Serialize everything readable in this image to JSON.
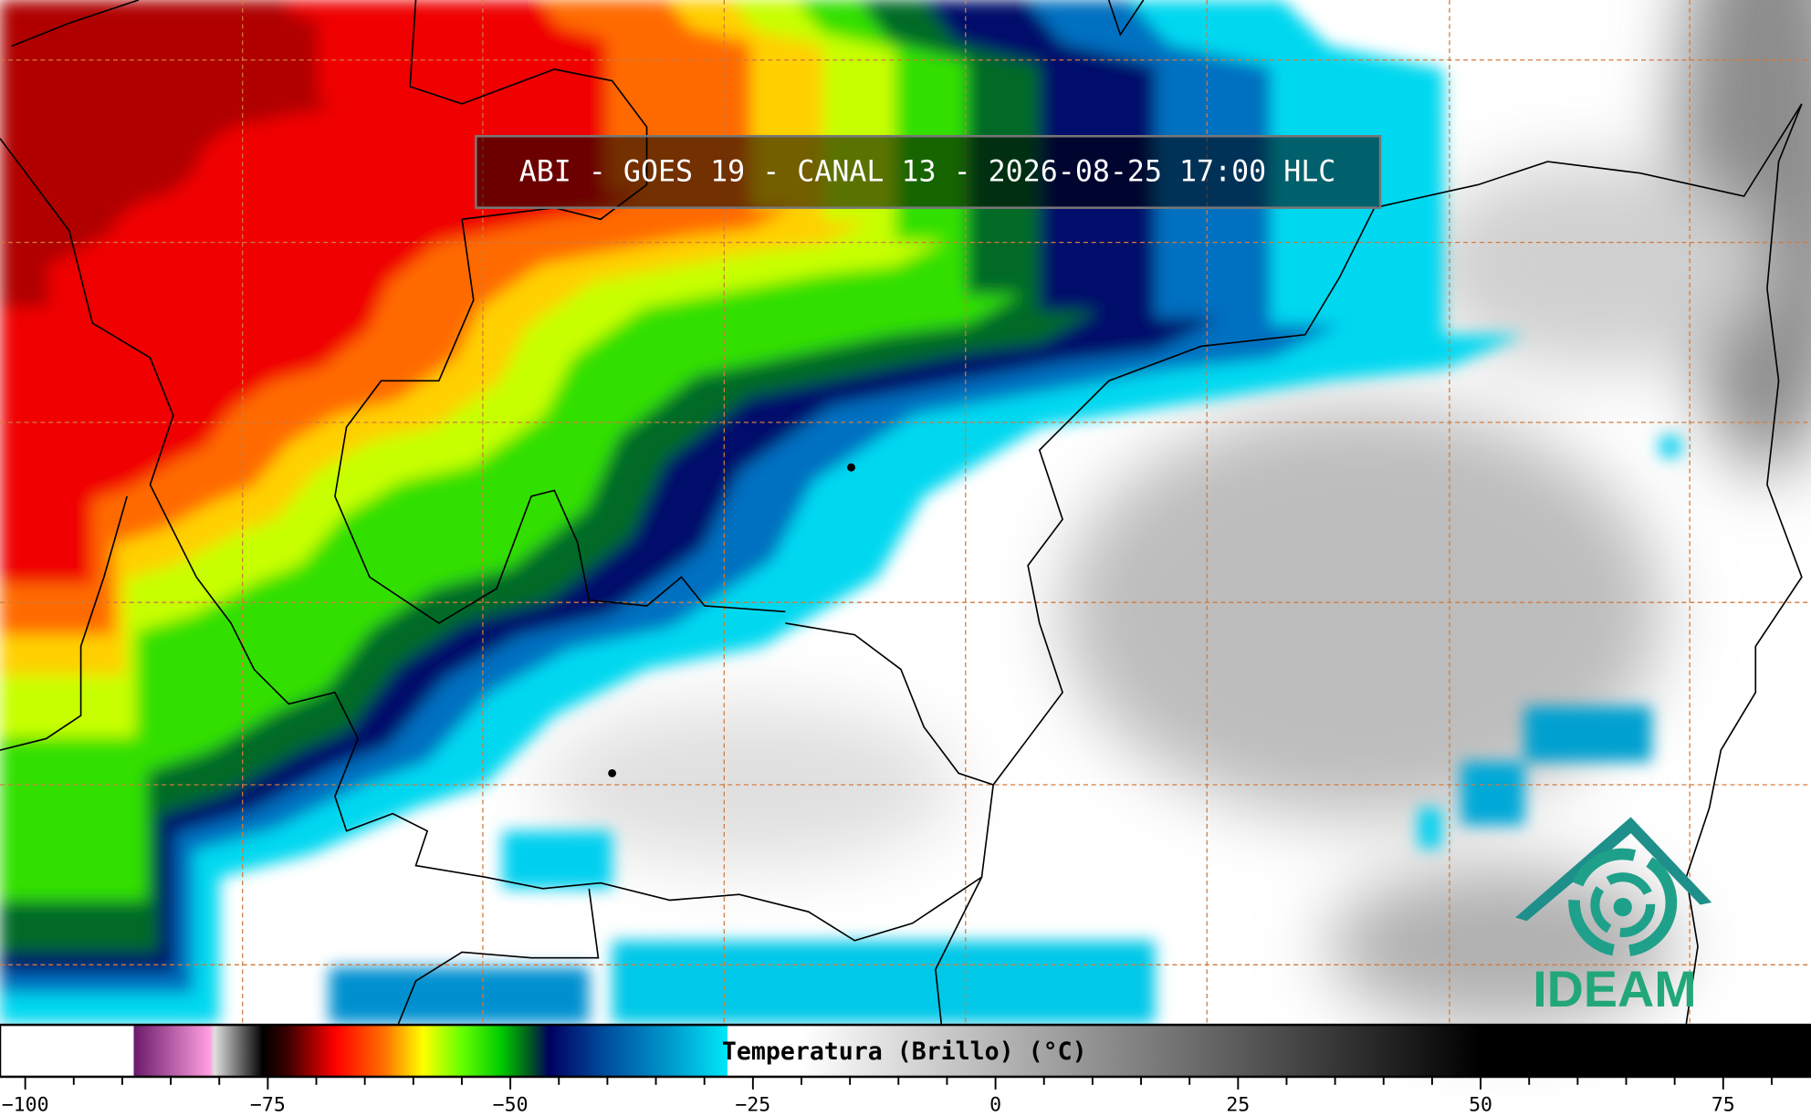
{
  "title": "ABI - GOES 19 - CANAL 13 - 2026-08-25 17:00 HLC",
  "logo": "IDEAM",
  "colorbar": {
    "label": "Temperatura (Brillo) (°C)",
    "xlim": [
      -102.6,
      84.05
    ],
    "ticks": [
      {
        "value": -100,
        "label": "−100"
      },
      {
        "value": -75,
        "label": "−75"
      },
      {
        "value": -50,
        "label": "−50"
      },
      {
        "value": -25,
        "label": "−25"
      },
      0,
      25,
      50,
      75
    ],
    "minor_ticks": [
      -95,
      -90,
      -85,
      -80,
      -70,
      -65,
      -60,
      -55,
      -45,
      -40,
      -35,
      -30,
      -20,
      -15,
      -10,
      -5,
      5,
      10,
      15,
      20,
      30,
      35,
      40,
      45,
      55,
      60,
      65,
      70,
      80
    ],
    "colormap": [
      {
        "value": -102.6,
        "color": "#ffffff"
      },
      {
        "value": -88.8,
        "color": "#ffffff"
      },
      {
        "value": -88.8,
        "color": "#6a1b6a"
      },
      {
        "value": -81,
        "color": "#ff9ee0"
      },
      {
        "value": -80.5,
        "color": "#e0e0e0"
      },
      {
        "value": -75.5,
        "color": "#000000"
      },
      {
        "value": -73,
        "color": "#3a0000"
      },
      {
        "value": -68,
        "color": "#ff0000"
      },
      {
        "value": -63,
        "color": "#ff7000"
      },
      {
        "value": -59,
        "color": "#ffff00"
      },
      {
        "value": -55,
        "color": "#66ff00"
      },
      {
        "value": -51,
        "color": "#00cc00"
      },
      {
        "value": -48,
        "color": "#005a20"
      },
      {
        "value": -46,
        "color": "#000060"
      },
      {
        "value": -40,
        "color": "#0050a0"
      },
      {
        "value": -33,
        "color": "#00a0d0"
      },
      {
        "value": -27.6,
        "color": "#00e8f8"
      },
      {
        "value": -27.6,
        "color": "#ffffff"
      },
      {
        "value": -20,
        "color": "#ffffff"
      },
      {
        "value": 50,
        "color": "#000000"
      },
      {
        "value": 84.05,
        "color": "#000000"
      }
    ]
  }
}
